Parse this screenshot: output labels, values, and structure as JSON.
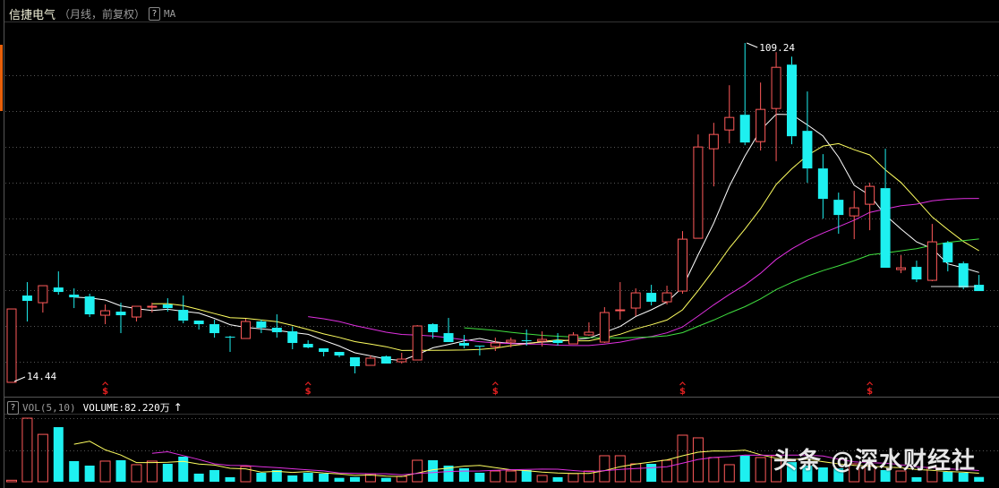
{
  "header": {
    "stock_name": "信捷电气",
    "period_label": "（月线，前复权）",
    "help_icon": "?",
    "indicator": "MA"
  },
  "volume_header": {
    "help_icon": "?",
    "indicator": "VOL(5,10)",
    "volume_readout": "VOLUME:82.220万",
    "arrow": "↑"
  },
  "watermark": "头条 @深水财经社",
  "colors": {
    "up": "#ff5a5a",
    "down": "#1ef0f0",
    "ma5": "#ffffff",
    "ma10": "#ffff60",
    "ma20": "#e030e0",
    "ma30": "#40e040",
    "vol_ma5": "#ffff60",
    "vol_ma10": "#e030e0",
    "marker": "#e02020",
    "background": "#000000"
  },
  "chart_data": {
    "type": "candlestick",
    "title": "",
    "candle_format": [
      "open",
      "high",
      "low",
      "close"
    ],
    "candles": [
      [
        14.44,
        34.94,
        14.44,
        34.94
      ],
      [
        38.69,
        42.44,
        31.44,
        37.19
      ],
      [
        36.69,
        41.44,
        33.94,
        41.44
      ],
      [
        40.94,
        45.44,
        38.94,
        39.69
      ],
      [
        38.94,
        40.69,
        35.19,
        38.19
      ],
      [
        38.44,
        39.19,
        32.69,
        33.44
      ],
      [
        33.19,
        36.19,
        30.69,
        34.44
      ],
      [
        34.19,
        36.69,
        28.19,
        33.19
      ],
      [
        32.69,
        35.69,
        31.44,
        35.69
      ],
      [
        35.44,
        36.69,
        33.94,
        35.69
      ],
      [
        36.19,
        37.94,
        34.19,
        35.19
      ],
      [
        34.69,
        38.69,
        30.94,
        31.69
      ],
      [
        31.69,
        31.69,
        29.19,
        30.69
      ],
      [
        30.69,
        31.94,
        26.94,
        28.19
      ],
      [
        27.19,
        27.44,
        22.94,
        26.94
      ],
      [
        26.69,
        32.19,
        26.69,
        31.44
      ],
      [
        31.44,
        31.94,
        28.19,
        29.69
      ],
      [
        29.69,
        33.44,
        26.94,
        28.44
      ],
      [
        28.69,
        29.94,
        23.69,
        25.44
      ],
      [
        25.19,
        26.19,
        23.94,
        24.19
      ],
      [
        23.94,
        23.94,
        21.69,
        22.94
      ],
      [
        22.94,
        22.94,
        21.44,
        21.94
      ],
      [
        21.44,
        21.44,
        16.94,
        18.94
      ],
      [
        19.19,
        21.94,
        19.19,
        21.19
      ],
      [
        21.69,
        21.94,
        19.69,
        19.69
      ],
      [
        20.19,
        22.69,
        19.69,
        20.94
      ],
      [
        20.69,
        30.44,
        20.69,
        30.19
      ],
      [
        30.69,
        30.94,
        26.69,
        28.44
      ],
      [
        28.19,
        32.44,
        25.69,
        25.69
      ],
      [
        25.44,
        27.69,
        23.94,
        24.69
      ],
      [
        24.69,
        24.69,
        21.94,
        24.44
      ],
      [
        24.44,
        26.94,
        23.19,
        25.44
      ],
      [
        25.69,
        26.94,
        24.19,
        26.19
      ],
      [
        26.19,
        29.19,
        24.69,
        25.94
      ],
      [
        25.94,
        28.69,
        24.44,
        26.44
      ],
      [
        26.19,
        28.19,
        24.69,
        25.44
      ],
      [
        25.19,
        28.44,
        25.19,
        27.69
      ],
      [
        27.69,
        31.19,
        27.44,
        28.44
      ],
      [
        25.69,
        35.44,
        25.44,
        33.94
      ],
      [
        34.44,
        42.44,
        31.94,
        34.69
      ],
      [
        35.19,
        40.69,
        32.94,
        39.44
      ],
      [
        39.44,
        41.69,
        35.94,
        36.94
      ],
      [
        36.94,
        41.44,
        36.19,
        39.44
      ],
      [
        39.94,
        56.69,
        39.19,
        54.44
      ],
      [
        54.69,
        83.69,
        54.69,
        80.19
      ],
      [
        79.69,
        86.94,
        69.19,
        83.69
      ],
      [
        84.94,
        97.44,
        81.19,
        88.44
      ],
      [
        89.19,
        109.24,
        80.69,
        81.44
      ],
      [
        81.69,
        98.19,
        79.19,
        90.69
      ],
      [
        90.94,
        106.69,
        76.19,
        102.44
      ],
      [
        103.19,
        105.44,
        80.94,
        83.19
      ],
      [
        84.69,
        95.69,
        70.19,
        74.19
      ],
      [
        74.19,
        78.19,
        60.19,
        65.69
      ],
      [
        65.44,
        67.44,
        55.94,
        61.19
      ],
      [
        60.94,
        67.94,
        54.44,
        63.19
      ],
      [
        64.19,
        70.19,
        56.94,
        69.19
      ],
      [
        68.69,
        79.69,
        46.44,
        46.44
      ],
      [
        45.94,
        49.94,
        44.94,
        46.44
      ],
      [
        46.69,
        48.44,
        42.44,
        43.19
      ],
      [
        42.94,
        58.69,
        42.69,
        53.69
      ],
      [
        53.44,
        53.94,
        45.44,
        47.94
      ],
      [
        47.69,
        48.19,
        40.44,
        40.94
      ],
      [
        41.69,
        44.44,
        39.94,
        39.94
      ]
    ],
    "volumes": [
      26,
      1100,
      820,
      945,
      357,
      279,
      357,
      372,
      295,
      357,
      310,
      434,
      140,
      202,
      78,
      264,
      155,
      202,
      109,
      155,
      140,
      67,
      82,
      135,
      67,
      93,
      372,
      372,
      279,
      233,
      155,
      186,
      186,
      202,
      109,
      78,
      140,
      186,
      450,
      450,
      310,
      310,
      372,
      806,
      760,
      419,
      295,
      450,
      419,
      450,
      341,
      279,
      248,
      233,
      310,
      279,
      202,
      186,
      78,
      248,
      171,
      155,
      82.22
    ],
    "volume_unit": "万",
    "ma_periods": [
      5,
      10,
      20,
      30
    ],
    "vol_ma_periods": [
      5,
      10
    ],
    "annotations": {
      "high_label": "109.24",
      "high_index": 47,
      "low_label": "14.44",
      "low_index": 0
    },
    "event_markers": {
      "symbol": "$",
      "indices": [
        6,
        19,
        31,
        43,
        55
      ]
    },
    "ylim": [
      14.44,
      109.24
    ],
    "grid": true
  }
}
